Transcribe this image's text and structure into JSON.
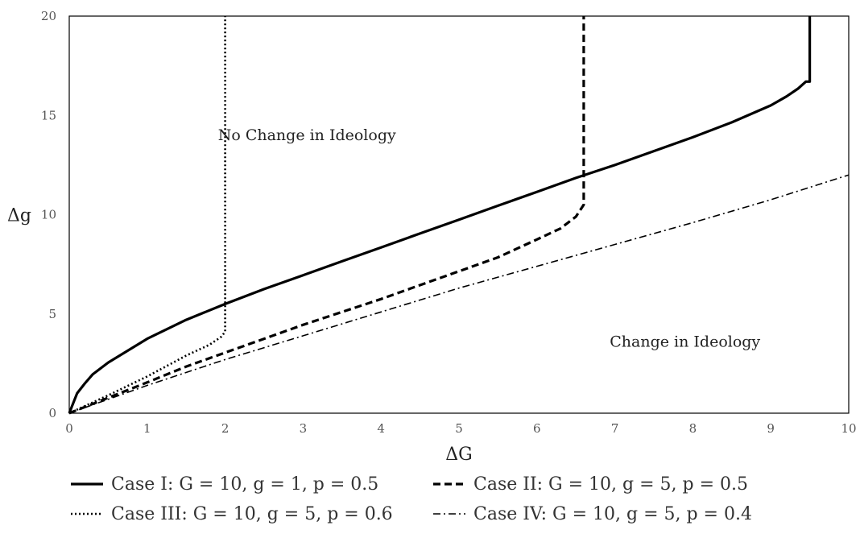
{
  "chart_data": {
    "type": "line",
    "title": "",
    "xlabel": "ΔG",
    "ylabel": "Δg",
    "xlim": [
      0,
      10
    ],
    "ylim": [
      0,
      20
    ],
    "xticks": [
      "0",
      "1",
      "2",
      "3",
      "4",
      "5",
      "6",
      "7",
      "8",
      "9",
      "10"
    ],
    "yticks": [
      "0",
      "5",
      "10",
      "15",
      "20"
    ],
    "grid": false,
    "legend_position": "bottom",
    "annotations": [
      {
        "text": "No Change in Ideology",
        "x": 3.05,
        "y": 14.0
      },
      {
        "text": "Change in Ideology",
        "x": 7.9,
        "y": 3.6
      }
    ],
    "series": [
      {
        "name": "Case I: G = 10, g = 1, p = 0.5",
        "style": "solid",
        "color": "#000000",
        "x": [
          0,
          0.1,
          0.2,
          0.3,
          0.5,
          0.75,
          1.0,
          1.5,
          2.0,
          2.5,
          3.0,
          3.5,
          4.0,
          4.5,
          5.0,
          5.5,
          6.0,
          6.5,
          7.0,
          7.5,
          8.0,
          8.5,
          9.0,
          9.2,
          9.35,
          9.45,
          9.5,
          9.5
        ],
        "y": [
          0,
          1.0,
          1.5,
          1.95,
          2.55,
          3.15,
          3.75,
          4.7,
          5.5,
          6.25,
          6.95,
          7.65,
          8.35,
          9.05,
          9.75,
          10.45,
          11.15,
          11.85,
          12.5,
          13.2,
          13.9,
          14.65,
          15.5,
          15.95,
          16.35,
          16.7,
          16.7,
          20.0
        ]
      },
      {
        "name": "Case II: G = 10, g = 5, p = 0.5",
        "style": "dashed",
        "color": "#000000",
        "x": [
          0,
          0.5,
          1.0,
          1.5,
          2.0,
          2.5,
          3.0,
          3.5,
          4.0,
          4.5,
          5.0,
          5.5,
          6.0,
          6.3,
          6.5,
          6.6,
          6.6
        ],
        "y": [
          0,
          0.78,
          1.55,
          2.35,
          3.05,
          3.75,
          4.45,
          5.1,
          5.75,
          6.45,
          7.15,
          7.85,
          8.75,
          9.3,
          9.9,
          10.5,
          20.0
        ]
      },
      {
        "name": "Case III: G = 10, g = 5, p = 0.6",
        "style": "dotted",
        "color": "#000000",
        "x": [
          0,
          0.5,
          1.0,
          1.5,
          1.8,
          1.95,
          2.0,
          2.0
        ],
        "y": [
          0,
          0.9,
          1.85,
          2.9,
          3.45,
          3.85,
          4.1,
          20.0
        ]
      },
      {
        "name": "Case IV: G = 10, g = 5, p = 0.4",
        "style": "dashdot",
        "color": "#000000",
        "x": [
          0,
          1,
          2,
          3,
          4,
          5,
          6,
          7,
          8,
          9,
          10
        ],
        "y": [
          0,
          1.4,
          2.7,
          3.9,
          5.1,
          6.3,
          7.4,
          8.5,
          9.6,
          10.75,
          12.0
        ]
      }
    ]
  }
}
